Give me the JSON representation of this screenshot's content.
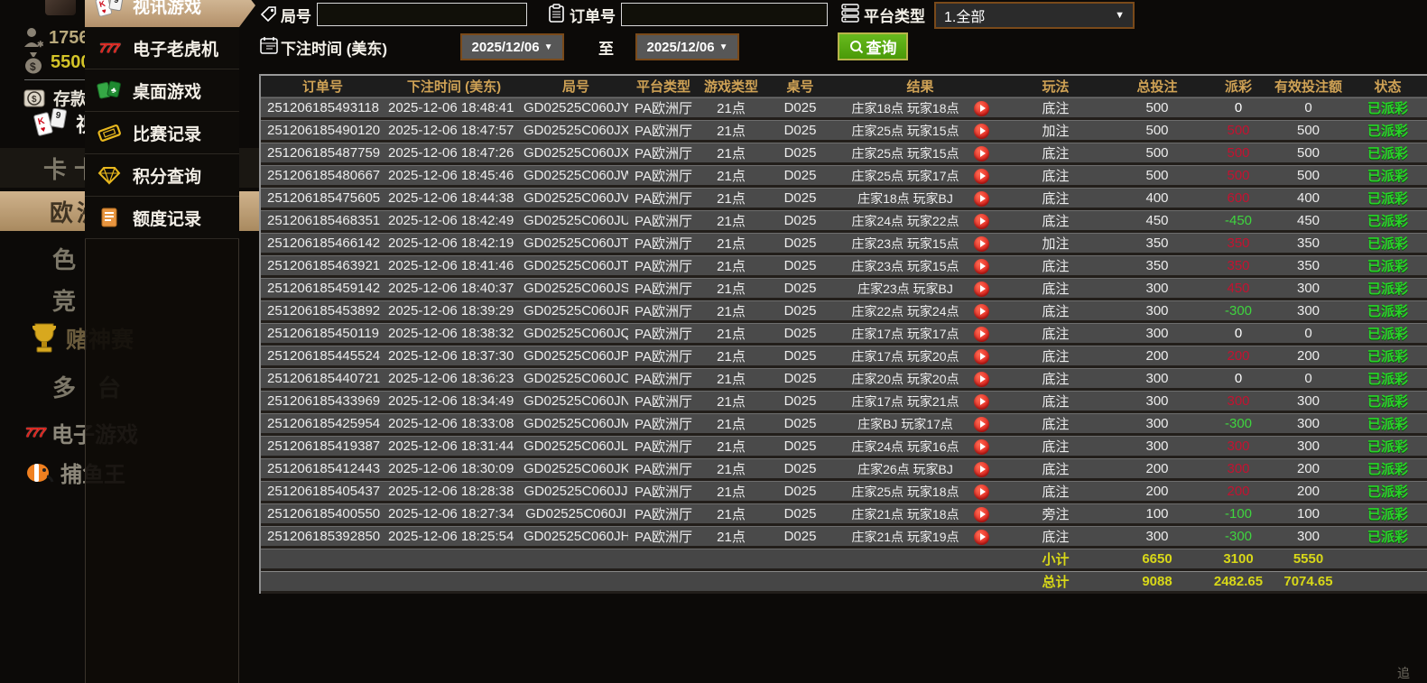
{
  "colors": {
    "accent_gold": "#cfa255",
    "win_red": "#c41230",
    "loss_green": "#3fd43f",
    "status_green": "#28d428",
    "total_yellow": "#d8d818",
    "active_tan": "#c5a87e",
    "button_green": "#55a414",
    "border_orange": "#7a4a1a"
  },
  "sidebar": {
    "user_id": "1756",
    "balance": "5500",
    "deposit_label": "存款",
    "video_short_label": "视",
    "nav_items": [
      {
        "label": "卡卡"
      },
      {
        "label": "欧洲"
      },
      {
        "label": "色"
      },
      {
        "label": "竞"
      },
      {
        "label": "赌神赛"
      },
      {
        "label": "多台"
      },
      {
        "label": "电子游戏"
      },
      {
        "label": "捕鱼王"
      }
    ]
  },
  "flyout": {
    "items": [
      {
        "label": "视讯游戏",
        "icon": "cards-icon",
        "active": true
      },
      {
        "label": "电子老虎机",
        "icon": "slots-777-icon",
        "active": false
      },
      {
        "label": "桌面游戏",
        "icon": "table-games-icon",
        "active": false
      },
      {
        "label": "比赛记录",
        "icon": "ticket-icon",
        "active": false
      },
      {
        "label": "积分查询",
        "icon": "gem-icon",
        "active": false
      },
      {
        "label": "额度记录",
        "icon": "document-icon",
        "active": false
      }
    ]
  },
  "filters": {
    "round_label": "局号",
    "round_value": "",
    "order_label": "订单号",
    "order_value": "",
    "platform_label": "平台类型",
    "platform_value": "1.全部",
    "bet_time_label": "下注时间 (美东)",
    "date_from": "2025/12/06",
    "to_label": "至",
    "date_to": "2025/12/06",
    "query_label": "查询"
  },
  "table": {
    "columns": [
      "订单号",
      "下注时间 (美东)",
      "局号",
      "平台类型",
      "游戏类型",
      "桌号",
      "结果",
      "玩法",
      "总投注",
      "派彩",
      "有效投注额",
      "状态"
    ],
    "column_keys": [
      "order_no",
      "bet_time",
      "round_no",
      "platform",
      "game_type",
      "table_no",
      "result",
      "play_type",
      "total_bet",
      "payout",
      "valid_bet",
      "status"
    ],
    "rows": [
      {
        "order_no": "251206185493118",
        "bet_time": "2025-12-06 18:48:41",
        "round_no": "GD02525C060JY",
        "platform": "PA欧洲厅",
        "game_type": "21点",
        "table_no": "D025",
        "result": "庄家18点 玩家18点",
        "play_type": "底注",
        "total_bet": "500",
        "payout": "0",
        "payout_class": "zero",
        "valid_bet": "0",
        "status": "已派彩"
      },
      {
        "order_no": "251206185490120",
        "bet_time": "2025-12-06 18:47:57",
        "round_no": "GD02525C060JX",
        "platform": "PA欧洲厅",
        "game_type": "21点",
        "table_no": "D025",
        "result": "庄家25点 玩家15点",
        "play_type": "加注",
        "total_bet": "500",
        "payout": "500",
        "payout_class": "win",
        "valid_bet": "500",
        "status": "已派彩"
      },
      {
        "order_no": "251206185487759",
        "bet_time": "2025-12-06 18:47:26",
        "round_no": "GD02525C060JX",
        "platform": "PA欧洲厅",
        "game_type": "21点",
        "table_no": "D025",
        "result": "庄家25点 玩家15点",
        "play_type": "底注",
        "total_bet": "500",
        "payout": "500",
        "payout_class": "win",
        "valid_bet": "500",
        "status": "已派彩"
      },
      {
        "order_no": "251206185480667",
        "bet_time": "2025-12-06 18:45:46",
        "round_no": "GD02525C060JW",
        "platform": "PA欧洲厅",
        "game_type": "21点",
        "table_no": "D025",
        "result": "庄家25点 玩家17点",
        "play_type": "底注",
        "total_bet": "500",
        "payout": "500",
        "payout_class": "win",
        "valid_bet": "500",
        "status": "已派彩"
      },
      {
        "order_no": "251206185475605",
        "bet_time": "2025-12-06 18:44:38",
        "round_no": "GD02525C060JV",
        "platform": "PA欧洲厅",
        "game_type": "21点",
        "table_no": "D025",
        "result": "庄家18点 玩家BJ",
        "play_type": "底注",
        "total_bet": "400",
        "payout": "600",
        "payout_class": "win",
        "valid_bet": "400",
        "status": "已派彩"
      },
      {
        "order_no": "251206185468351",
        "bet_time": "2025-12-06 18:42:49",
        "round_no": "GD02525C060JU",
        "platform": "PA欧洲厅",
        "game_type": "21点",
        "table_no": "D025",
        "result": "庄家24点 玩家22点",
        "play_type": "底注",
        "total_bet": "450",
        "payout": "-450",
        "payout_class": "loss",
        "valid_bet": "450",
        "status": "已派彩"
      },
      {
        "order_no": "251206185466142",
        "bet_time": "2025-12-06 18:42:19",
        "round_no": "GD02525C060JT",
        "platform": "PA欧洲厅",
        "game_type": "21点",
        "table_no": "D025",
        "result": "庄家23点 玩家15点",
        "play_type": "加注",
        "total_bet": "350",
        "payout": "350",
        "payout_class": "win",
        "valid_bet": "350",
        "status": "已派彩"
      },
      {
        "order_no": "251206185463921",
        "bet_time": "2025-12-06 18:41:46",
        "round_no": "GD02525C060JT",
        "platform": "PA欧洲厅",
        "game_type": "21点",
        "table_no": "D025",
        "result": "庄家23点 玩家15点",
        "play_type": "底注",
        "total_bet": "350",
        "payout": "350",
        "payout_class": "win",
        "valid_bet": "350",
        "status": "已派彩"
      },
      {
        "order_no": "251206185459142",
        "bet_time": "2025-12-06 18:40:37",
        "round_no": "GD02525C060JS",
        "platform": "PA欧洲厅",
        "game_type": "21点",
        "table_no": "D025",
        "result": "庄家23点 玩家BJ",
        "play_type": "底注",
        "total_bet": "300",
        "payout": "450",
        "payout_class": "win",
        "valid_bet": "300",
        "status": "已派彩"
      },
      {
        "order_no": "251206185453892",
        "bet_time": "2025-12-06 18:39:29",
        "round_no": "GD02525C060JR",
        "platform": "PA欧洲厅",
        "game_type": "21点",
        "table_no": "D025",
        "result": "庄家22点 玩家24点",
        "play_type": "底注",
        "total_bet": "300",
        "payout": "-300",
        "payout_class": "loss",
        "valid_bet": "300",
        "status": "已派彩"
      },
      {
        "order_no": "251206185450119",
        "bet_time": "2025-12-06 18:38:32",
        "round_no": "GD02525C060JQ",
        "platform": "PA欧洲厅",
        "game_type": "21点",
        "table_no": "D025",
        "result": "庄家17点 玩家17点",
        "play_type": "底注",
        "total_bet": "300",
        "payout": "0",
        "payout_class": "zero",
        "valid_bet": "0",
        "status": "已派彩"
      },
      {
        "order_no": "251206185445524",
        "bet_time": "2025-12-06 18:37:30",
        "round_no": "GD02525C060JP",
        "platform": "PA欧洲厅",
        "game_type": "21点",
        "table_no": "D025",
        "result": "庄家17点 玩家20点",
        "play_type": "底注",
        "total_bet": "200",
        "payout": "200",
        "payout_class": "win",
        "valid_bet": "200",
        "status": "已派彩"
      },
      {
        "order_no": "251206185440721",
        "bet_time": "2025-12-06 18:36:23",
        "round_no": "GD02525C060JO",
        "platform": "PA欧洲厅",
        "game_type": "21点",
        "table_no": "D025",
        "result": "庄家20点 玩家20点",
        "play_type": "底注",
        "total_bet": "300",
        "payout": "0",
        "payout_class": "zero",
        "valid_bet": "0",
        "status": "已派彩"
      },
      {
        "order_no": "251206185433969",
        "bet_time": "2025-12-06 18:34:49",
        "round_no": "GD02525C060JN",
        "platform": "PA欧洲厅",
        "game_type": "21点",
        "table_no": "D025",
        "result": "庄家17点 玩家21点",
        "play_type": "底注",
        "total_bet": "300",
        "payout": "300",
        "payout_class": "win",
        "valid_bet": "300",
        "status": "已派彩"
      },
      {
        "order_no": "251206185425954",
        "bet_time": "2025-12-06 18:33:08",
        "round_no": "GD02525C060JM",
        "platform": "PA欧洲厅",
        "game_type": "21点",
        "table_no": "D025",
        "result": "庄家BJ 玩家17点",
        "play_type": "底注",
        "total_bet": "300",
        "payout": "-300",
        "payout_class": "loss",
        "valid_bet": "300",
        "status": "已派彩"
      },
      {
        "order_no": "251206185419387",
        "bet_time": "2025-12-06 18:31:44",
        "round_no": "GD02525C060JL",
        "platform": "PA欧洲厅",
        "game_type": "21点",
        "table_no": "D025",
        "result": "庄家24点 玩家16点",
        "play_type": "底注",
        "total_bet": "300",
        "payout": "300",
        "payout_class": "win",
        "valid_bet": "300",
        "status": "已派彩"
      },
      {
        "order_no": "251206185412443",
        "bet_time": "2025-12-06 18:30:09",
        "round_no": "GD02525C060JK",
        "platform": "PA欧洲厅",
        "game_type": "21点",
        "table_no": "D025",
        "result": "庄家26点 玩家BJ",
        "play_type": "底注",
        "total_bet": "200",
        "payout": "300",
        "payout_class": "win",
        "valid_bet": "200",
        "status": "已派彩"
      },
      {
        "order_no": "251206185405437",
        "bet_time": "2025-12-06 18:28:38",
        "round_no": "GD02525C060JJ",
        "platform": "PA欧洲厅",
        "game_type": "21点",
        "table_no": "D025",
        "result": "庄家25点 玩家18点",
        "play_type": "底注",
        "total_bet": "200",
        "payout": "200",
        "payout_class": "win",
        "valid_bet": "200",
        "status": "已派彩"
      },
      {
        "order_no": "251206185400550",
        "bet_time": "2025-12-06 18:27:34",
        "round_no": "GD02525C060JI",
        "platform": "PA欧洲厅",
        "game_type": "21点",
        "table_no": "D025",
        "result": "庄家21点 玩家18点",
        "play_type": "旁注",
        "total_bet": "100",
        "payout": "-100",
        "payout_class": "loss",
        "valid_bet": "100",
        "status": "已派彩"
      },
      {
        "order_no": "251206185392850",
        "bet_time": "2025-12-06 18:25:54",
        "round_no": "GD02525C060JH",
        "platform": "PA欧洲厅",
        "game_type": "21点",
        "table_no": "D025",
        "result": "庄家21点 玩家19点",
        "play_type": "底注",
        "total_bet": "300",
        "payout": "-300",
        "payout_class": "loss",
        "valid_bet": "300",
        "status": "已派彩"
      }
    ],
    "subtotal": {
      "label": "小计",
      "total_bet": "6650",
      "payout": "3100",
      "valid_bet": "5550"
    },
    "total": {
      "label": "总计",
      "total_bet": "9088",
      "payout": "2482.65",
      "valid_bet": "7074.65"
    }
  },
  "watermark": "追"
}
